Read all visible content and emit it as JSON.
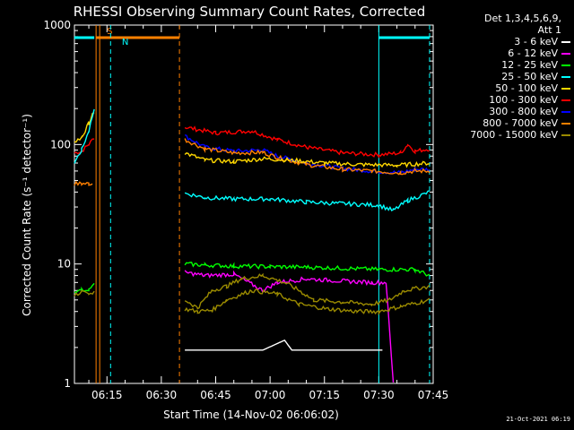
{
  "chart_data": {
    "type": "line",
    "title": "RHESSI Observing Summary Count Rates, Corrected",
    "xlabel": "Start Time (14-Nov-02 06:06:02)",
    "ylabel": "Corrected Count Rate (s⁻¹ detector⁻¹)",
    "y_scale": "log",
    "ylim": [
      1,
      1000
    ],
    "y_ticks": [
      1,
      10,
      100,
      1000
    ],
    "y_tick_labels": [
      "1",
      "10",
      "100",
      "1000"
    ],
    "xlim_minutes": [
      6.03,
      105
    ],
    "x_ticks_minutes": [
      15,
      30,
      45,
      60,
      75,
      90,
      105
    ],
    "x_tick_labels": [
      "06:15",
      "06:30",
      "06:45",
      "07:00",
      "07:15",
      "07:30",
      "07:45"
    ],
    "legend_header": [
      "Det 1,3,4,5,6,9,",
      "Att 1"
    ],
    "series": [
      {
        "name": "3 - 6 keV",
        "color": "#ffffff"
      },
      {
        "name": "6 - 12 keV",
        "color": "#ff00ff"
      },
      {
        "name": "12 - 25 keV",
        "color": "#00ff00"
      },
      {
        "name": "25 - 50 keV",
        "color": "#00ffff"
      },
      {
        "name": "50 - 100 keV",
        "color": "#ffd700"
      },
      {
        "name": "100 - 300 keV",
        "color": "#ff0000"
      },
      {
        "name": "300 - 800 keV",
        "color": "#0000ff"
      },
      {
        "name": "800 - 7000 keV",
        "color": "#ff8000"
      },
      {
        "name": "7000 - 15000 keV",
        "color": "#9a8a00"
      }
    ],
    "segments": [
      {
        "series": 5,
        "pts": [
          [
            6.0,
            85
          ],
          [
            8.0,
            88
          ],
          [
            10.0,
            100
          ],
          [
            11.5,
            115
          ]
        ]
      },
      {
        "series": 4,
        "pts": [
          [
            6.0,
            105
          ],
          [
            8.0,
            115
          ],
          [
            10.0,
            150
          ],
          [
            11.5,
            190
          ]
        ]
      },
      {
        "series": 3,
        "pts": [
          [
            6.0,
            70
          ],
          [
            8.0,
            90
          ],
          [
            10.0,
            130
          ],
          [
            11.5,
            200
          ]
        ]
      },
      {
        "series": 7,
        "pts": [
          [
            6.0,
            47
          ],
          [
            8.0,
            47
          ],
          [
            10.0,
            47
          ],
          [
            11.0,
            47
          ]
        ]
      },
      {
        "series": 2,
        "pts": [
          [
            6.0,
            6
          ],
          [
            8.0,
            6
          ],
          [
            10.0,
            6
          ],
          [
            11.5,
            7
          ]
        ]
      },
      {
        "series": 8,
        "pts": [
          [
            6.0,
            5.5
          ],
          [
            8.0,
            5.8
          ],
          [
            10.0,
            5.5
          ],
          [
            11.5,
            6
          ]
        ]
      },
      {
        "series": 5,
        "pts": [
          [
            36.5,
            140
          ],
          [
            45,
            125
          ],
          [
            55,
            130
          ],
          [
            62,
            110
          ],
          [
            70,
            95
          ],
          [
            80,
            85
          ],
          [
            90,
            82
          ],
          [
            96,
            85
          ],
          [
            98,
            100
          ],
          [
            100,
            88
          ],
          [
            104,
            92
          ]
        ]
      },
      {
        "series": 6,
        "pts": [
          [
            36.5,
            118
          ],
          [
            42,
            95
          ],
          [
            50,
            88
          ],
          [
            58,
            90
          ],
          [
            62,
            80
          ],
          [
            70,
            70
          ],
          [
            80,
            63
          ],
          [
            88,
            60
          ],
          [
            96,
            58
          ],
          [
            100,
            62
          ],
          [
            104,
            62
          ]
        ]
      },
      {
        "series": 7,
        "pts": [
          [
            36.5,
            110
          ],
          [
            42,
            92
          ],
          [
            50,
            85
          ],
          [
            58,
            86
          ],
          [
            62,
            78
          ],
          [
            70,
            68
          ],
          [
            80,
            62
          ],
          [
            88,
            60
          ],
          [
            96,
            58
          ],
          [
            100,
            60
          ],
          [
            104,
            60
          ]
        ]
      },
      {
        "series": 4,
        "pts": [
          [
            36.5,
            85
          ],
          [
            42,
            74
          ],
          [
            50,
            72
          ],
          [
            58,
            76
          ],
          [
            66,
            74
          ],
          [
            75,
            70
          ],
          [
            85,
            68
          ],
          [
            95,
            67
          ],
          [
            104,
            70
          ]
        ]
      },
      {
        "series": 3,
        "pts": [
          [
            36.5,
            39
          ],
          [
            42,
            36
          ],
          [
            50,
            35
          ],
          [
            60,
            35
          ],
          [
            70,
            33
          ],
          [
            80,
            32
          ],
          [
            90,
            31
          ],
          [
            94,
            28
          ],
          [
            98,
            34
          ],
          [
            104,
            40
          ]
        ]
      },
      {
        "series": 2,
        "pts": [
          [
            36.5,
            10
          ],
          [
            42,
            9.8
          ],
          [
            50,
            9.6
          ],
          [
            60,
            9.5
          ],
          [
            70,
            9.4
          ],
          [
            80,
            9.2
          ],
          [
            90,
            9.0
          ],
          [
            100,
            9.0
          ],
          [
            104,
            8
          ]
        ]
      },
      {
        "series": 1,
        "pts": [
          [
            36.5,
            8.5
          ],
          [
            42,
            8
          ],
          [
            50,
            8.2
          ],
          [
            58,
            6
          ],
          [
            62,
            7
          ],
          [
            70,
            7.5
          ],
          [
            80,
            7.2
          ],
          [
            88,
            7
          ],
          [
            92,
            7
          ],
          [
            94,
            1
          ]
        ]
      },
      {
        "series": 8,
        "pts": [
          [
            36.5,
            5
          ],
          [
            40,
            4.3
          ],
          [
            44,
            6
          ],
          [
            48,
            6.5
          ],
          [
            52,
            7.5
          ],
          [
            58,
            8
          ],
          [
            64,
            7
          ],
          [
            68,
            6
          ],
          [
            72,
            5
          ],
          [
            80,
            4.8
          ],
          [
            88,
            4.6
          ],
          [
            93,
            5
          ],
          [
            97,
            6
          ],
          [
            104,
            6.5
          ]
        ]
      },
      {
        "series": 8,
        "pts": [
          [
            36.5,
            4.2
          ],
          [
            40,
            4
          ],
          [
            44,
            4.1
          ],
          [
            48,
            5
          ],
          [
            55,
            6
          ],
          [
            62,
            5.6
          ],
          [
            68,
            4.6
          ],
          [
            76,
            4.2
          ],
          [
            84,
            4
          ],
          [
            90,
            4
          ],
          [
            96,
            4.4
          ],
          [
            104,
            5
          ]
        ]
      },
      {
        "series": 0,
        "pts": [
          [
            36.5,
            1.9
          ],
          [
            40,
            1.9
          ],
          [
            46,
            1.9
          ],
          [
            50,
            1.9
          ],
          [
            58,
            1.9
          ],
          [
            64,
            2.3
          ],
          [
            66,
            1.9
          ],
          [
            70,
            1.9
          ],
          [
            84,
            1.9
          ],
          [
            88,
            1.9
          ],
          [
            91,
            1.9
          ]
        ]
      }
    ],
    "overlays": [
      {
        "label": "S",
        "kind": "flag",
        "color": "#ff8000",
        "x_start": 12.0,
        "x_end": 35.0,
        "solid_at": [
          12.0,
          13.0
        ],
        "dashed_at": [
          35.0
        ]
      },
      {
        "label": "N",
        "kind": "flag",
        "color": "#00ffff",
        "x_start": 6.0,
        "x_end": 11.5,
        "dashed_at": [
          16.0
        ]
      },
      {
        "label": "",
        "kind": "flag",
        "color": "#00ffff",
        "x_start": 90.0,
        "x_end": 104.0,
        "solid_at": [
          90.0
        ],
        "dashed_at": [
          104.0
        ]
      }
    ],
    "grid": false
  },
  "timestamp": "21-Oct-2021 06:19"
}
